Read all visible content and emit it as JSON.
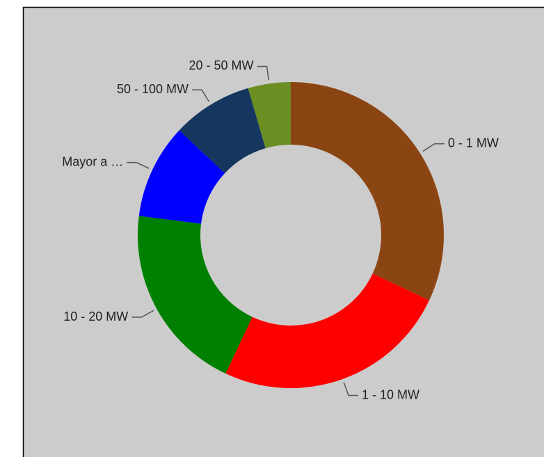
{
  "chart_data": {
    "type": "donut",
    "categories": [
      "0 - 1 MW",
      "1 - 10 MW",
      "10 - 20 MW",
      "Mayor a …",
      "50 - 100 MW",
      "20 - 50 MW"
    ],
    "values": [
      32,
      25,
      20,
      10,
      8.5,
      4.5
    ],
    "colors": [
      "#8b4513",
      "#ff0000",
      "#008000",
      "#0000ff",
      "#14365f",
      "#6b8e23"
    ]
  }
}
